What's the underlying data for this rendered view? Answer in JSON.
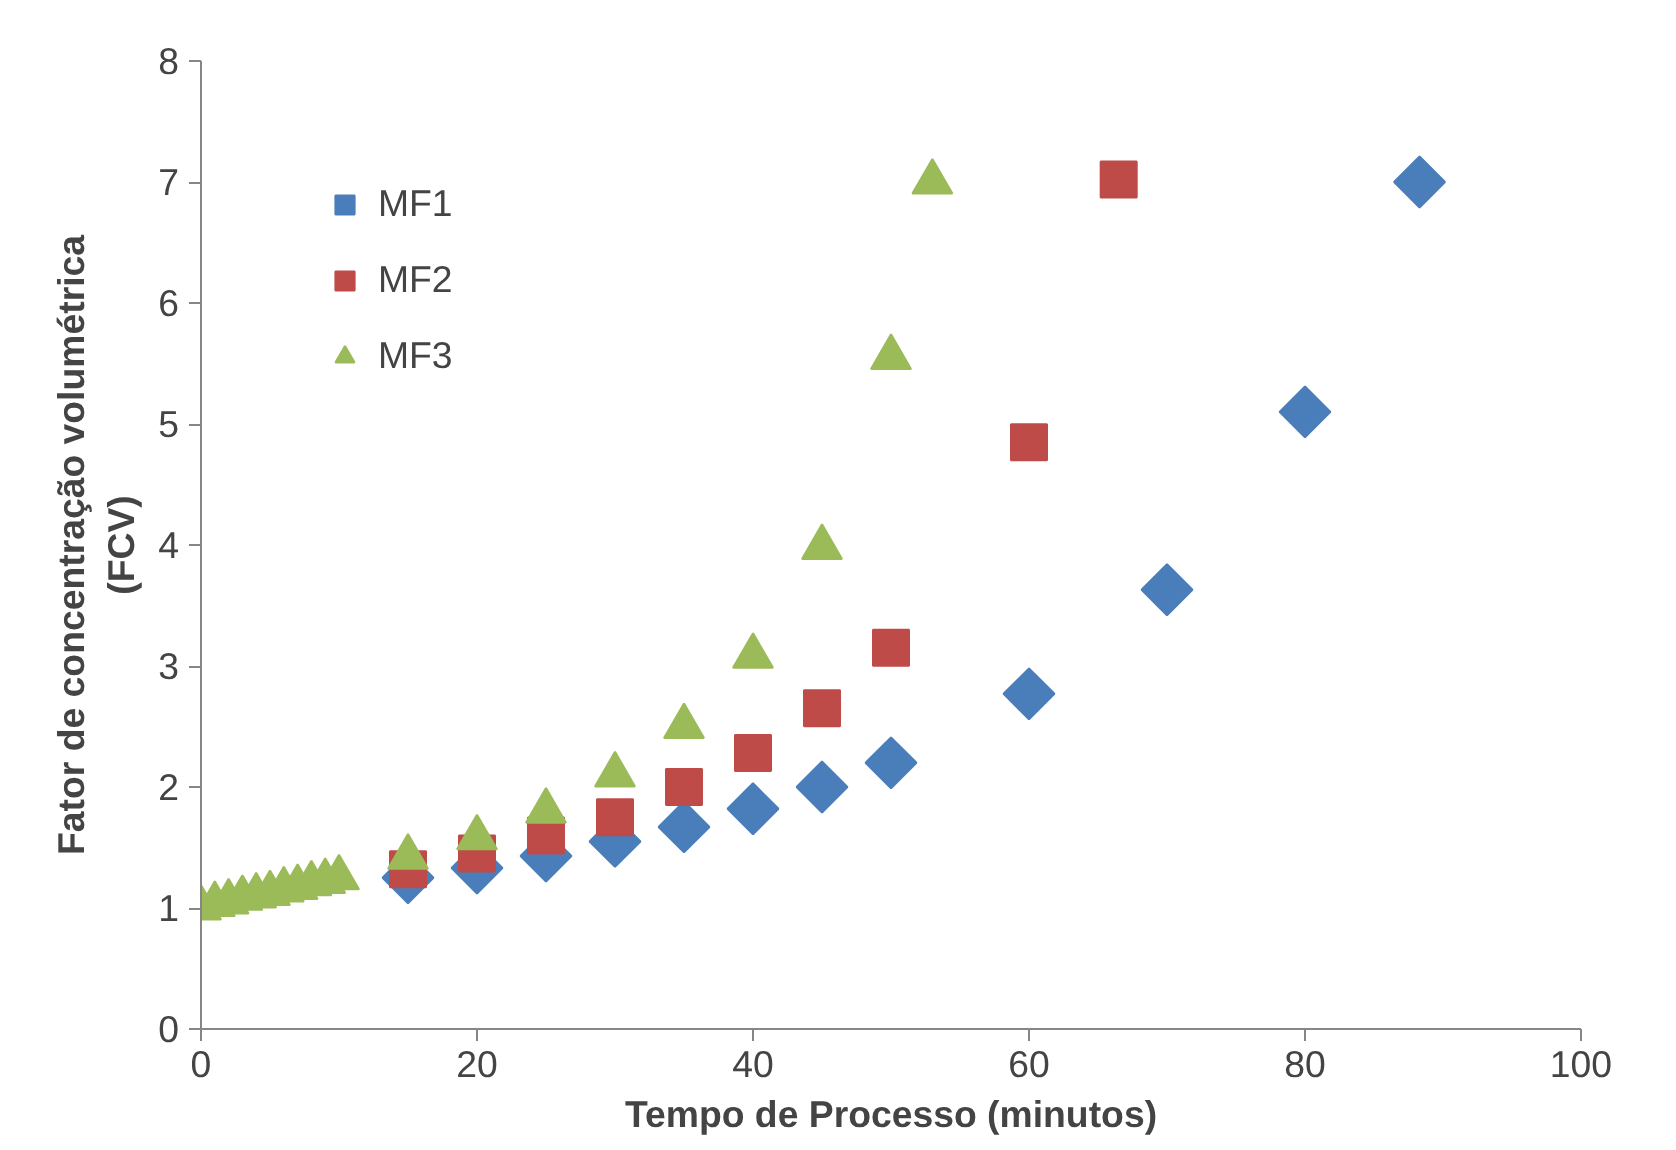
{
  "chart_data": {
    "type": "scatter",
    "xlabel": "Tempo de Processo (minutos)",
    "ylabel": "Fator de concentração volumétrica\n(FCV)",
    "xlim": [
      0,
      100
    ],
    "ylim": [
      0,
      8
    ],
    "xticks": [
      0,
      20,
      40,
      60,
      80,
      100
    ],
    "yticks": [
      0,
      1,
      2,
      3,
      4,
      5,
      6,
      7,
      8
    ],
    "grid": false,
    "legend": "top left",
    "series": [
      {
        "name": "MF1",
        "color": "#4a7ebb",
        "marker": "diamond",
        "x": [
          15,
          20,
          25,
          30,
          35,
          40,
          45,
          50,
          60,
          70,
          80,
          88.3
        ],
        "values": [
          1.25,
          1.33,
          1.43,
          1.55,
          1.67,
          1.82,
          2.0,
          2.2,
          2.77,
          3.63,
          5.1,
          7.0
        ]
      },
      {
        "name": "MF2",
        "color": "#be4b48",
        "marker": "square",
        "x": [
          15,
          20,
          25,
          30,
          35,
          40,
          45,
          50,
          60,
          66.5
        ],
        "values": [
          1.32,
          1.45,
          1.6,
          1.75,
          2.0,
          2.28,
          2.65,
          3.15,
          4.85,
          7.02
        ]
      },
      {
        "name": "MF3",
        "color": "#9bbb59",
        "marker": "triangle",
        "x": [
          0,
          1,
          2,
          3,
          4,
          5,
          6,
          7,
          8,
          9,
          10,
          15,
          20,
          25,
          30,
          35,
          40,
          45,
          50,
          53
        ],
        "values": [
          1.0,
          1.03,
          1.05,
          1.08,
          1.1,
          1.12,
          1.15,
          1.17,
          1.2,
          1.22,
          1.25,
          1.42,
          1.58,
          1.8,
          2.1,
          2.5,
          3.08,
          3.98,
          5.55,
          7.0
        ]
      }
    ]
  }
}
